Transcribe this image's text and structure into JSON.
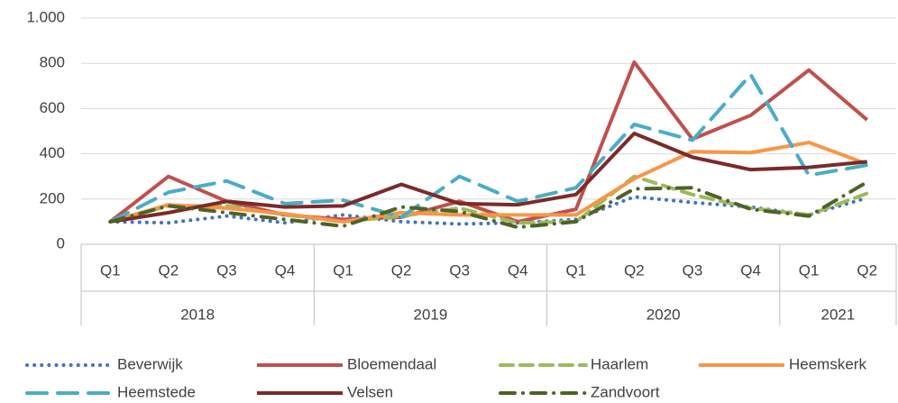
{
  "chart_data": {
    "type": "line",
    "categories": [
      "Q1",
      "Q2",
      "Q3",
      "Q4",
      "Q1",
      "Q2",
      "Q3",
      "Q4",
      "Q1",
      "Q2",
      "Q3",
      "Q4",
      "Q1",
      "Q2"
    ],
    "groups": [
      {
        "name": "2018",
        "size": 4
      },
      {
        "name": "2019",
        "size": 4
      },
      {
        "name": "2020",
        "size": 4
      },
      {
        "name": "2021",
        "size": 2
      }
    ],
    "ylim": [
      0,
      1000
    ],
    "yticks": [
      0,
      200,
      400,
      600,
      800,
      {
        "value": 1000,
        "label": "1.000"
      }
    ],
    "grid": true,
    "legend": "bottom",
    "series": [
      {
        "name": "Beverwijk",
        "color": "#4472c4",
        "dash": "dotted",
        "values": [
          100,
          95,
          125,
          95,
          130,
          100,
          90,
          95,
          110,
          210,
          185,
          165,
          130,
          205
        ]
      },
      {
        "name": "Bloemendaal",
        "color": "#c0504d",
        "dash": "solid",
        "values": [
          100,
          300,
          190,
          130,
          110,
          120,
          190,
          100,
          155,
          805,
          465,
          570,
          770,
          550
        ]
      },
      {
        "name": "Haarlem",
        "color": "#9bbb59",
        "dash": "dashed",
        "values": [
          100,
          170,
          170,
          130,
          100,
          125,
          160,
          95,
          100,
          300,
          220,
          160,
          130,
          225
        ]
      },
      {
        "name": "Heemskerk",
        "color": "#f79646",
        "dash": "solid",
        "values": [
          100,
          175,
          160,
          135,
          100,
          140,
          130,
          130,
          130,
          290,
          410,
          405,
          450,
          355
        ]
      },
      {
        "name": "Heemstede",
        "color": "#4bacc6",
        "dash": "long-dashed",
        "values": [
          100,
          230,
          280,
          180,
          195,
          120,
          300,
          190,
          250,
          530,
          460,
          750,
          305,
          350
        ]
      },
      {
        "name": "Velsen",
        "color": "#7b2a2a",
        "dash": "solid",
        "values": [
          100,
          140,
          190,
          165,
          170,
          265,
          180,
          175,
          220,
          490,
          385,
          330,
          340,
          365
        ]
      },
      {
        "name": "Zandvoort",
        "color": "#4f6228",
        "dash": "dash-dot",
        "values": [
          100,
          170,
          140,
          110,
          80,
          165,
          145,
          75,
          100,
          245,
          250,
          155,
          125,
          275
        ]
      }
    ]
  }
}
